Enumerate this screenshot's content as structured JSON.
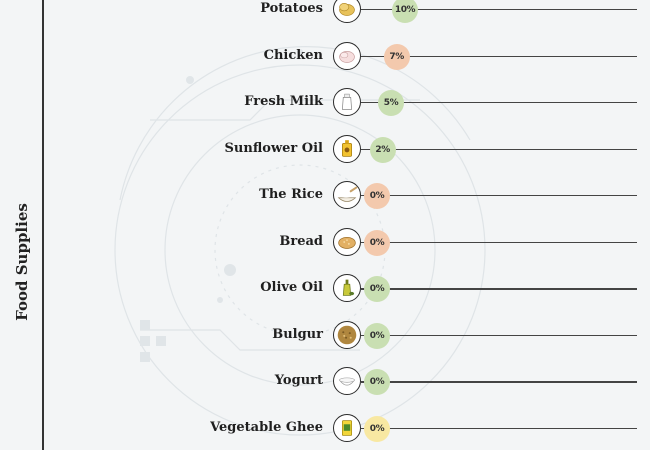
{
  "page": {
    "axis_title": "Food Supplies"
  },
  "chart_data": {
    "type": "bar",
    "orientation": "horizontal",
    "ylabel": "Food Supplies",
    "value_suffix": "%",
    "categories": [
      "Potatoes",
      "Chicken",
      "Fresh Milk",
      "Sunflower Oil",
      "The Rice",
      "Bread",
      "Olive Oil",
      "Bulgur",
      "Yogurt",
      "Vegetable Ghee"
    ],
    "values": [
      10,
      7,
      5,
      2,
      0,
      0,
      0,
      0,
      0,
      0
    ],
    "display_labels": [
      "10%",
      "7%",
      "5%",
      "2%",
      "0%",
      "0%",
      "0%",
      "0%",
      "0%",
      "0%"
    ],
    "badge_colors": [
      "#c9dfb2",
      "#f3c9ad",
      "#c9dfb2",
      "#c9dfb2",
      "#f3c9ad",
      "#f3c9ad",
      "#c9dfb2",
      "#c9dfb2",
      "#c9dfb2",
      "#f8e8a2"
    ],
    "icons": [
      "potatoes-icon",
      "chicken-icon",
      "fresh-milk-icon",
      "sunflower-oil-icon",
      "rice-icon",
      "bread-icon",
      "olive-oil-icon",
      "bulgur-icon",
      "yogurt-icon",
      "vegetable-ghee-icon"
    ],
    "xlim": [
      0,
      100
    ],
    "grid": false,
    "legend": "none"
  }
}
